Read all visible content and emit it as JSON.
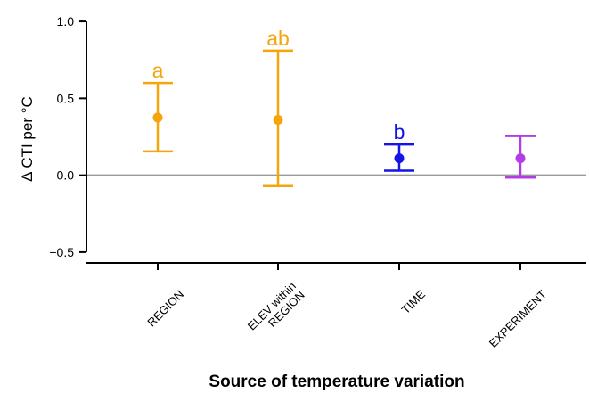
{
  "chart_data": {
    "type": "scatter",
    "ylabel": "Δ CTI per °C",
    "xlabel": "Source of temperature variation",
    "ylim": [
      -0.57,
      1.07
    ],
    "yticks": [
      {
        "value": -0.5,
        "label": "−0.5"
      },
      {
        "value": 0.0,
        "label": "0.0"
      },
      {
        "value": 0.5,
        "label": "0.5"
      },
      {
        "value": 1.0,
        "label": "1.0"
      }
    ],
    "reference_line": 0.0,
    "grid": false,
    "categories": [
      {
        "lines": [
          "REGION"
        ]
      },
      {
        "lines": [
          "ELEV within",
          "REGION"
        ]
      },
      {
        "lines": [
          "TIME"
        ]
      },
      {
        "lines": [
          "EXPERIMENT"
        ]
      }
    ],
    "points": [
      {
        "value": 0.375,
        "lower": 0.155,
        "upper": 0.6,
        "letter": "a",
        "color": "#F5A40C"
      },
      {
        "value": 0.36,
        "lower": -0.07,
        "upper": 0.81,
        "letter": "ab",
        "color": "#F5A40C"
      },
      {
        "value": 0.11,
        "lower": 0.03,
        "upper": 0.2,
        "letter": "b",
        "color": "#1414E6"
      },
      {
        "value": 0.11,
        "lower": -0.015,
        "upper": 0.255,
        "letter": "",
        "color": "#B43CE6"
      }
    ]
  }
}
